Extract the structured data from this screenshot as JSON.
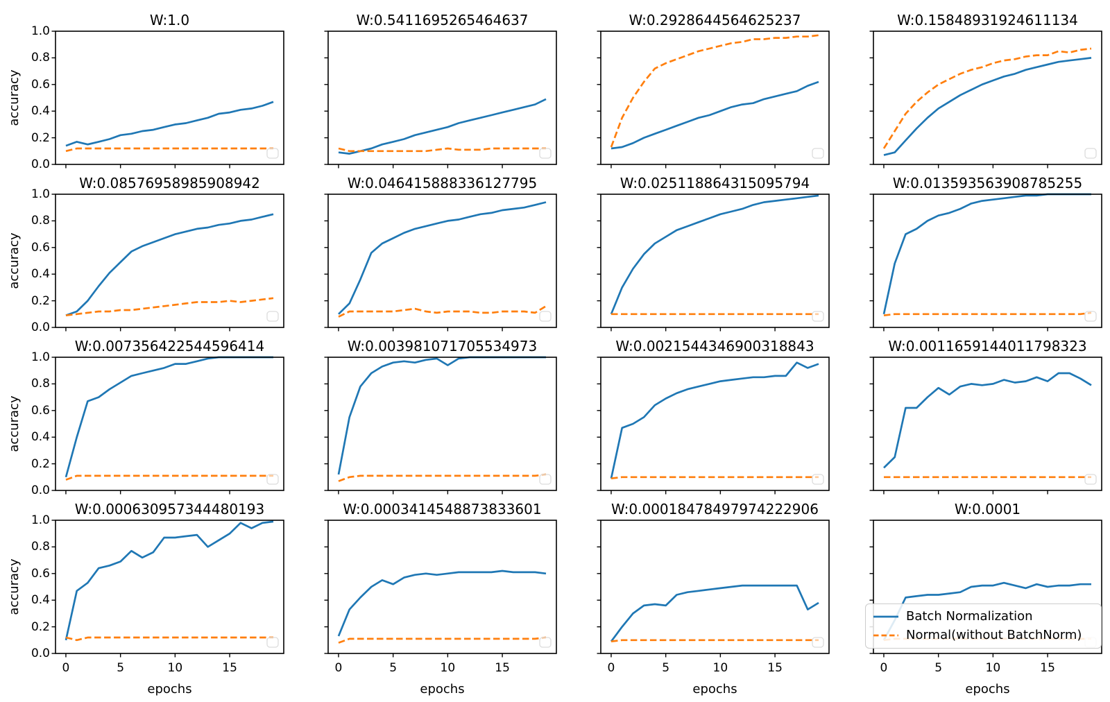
{
  "figure": {
    "background": "#ffffff",
    "xlabel": "epochs",
    "ylabel": "accuracy",
    "xticks": [
      0,
      5,
      10,
      15
    ],
    "yticks": [
      "0.0",
      "0.2",
      "0.4",
      "0.6",
      "0.8",
      "1.0"
    ],
    "x_values": [
      0,
      1,
      2,
      3,
      4,
      5,
      6,
      7,
      8,
      9,
      10,
      11,
      12,
      13,
      14,
      15,
      16,
      17,
      18,
      19
    ],
    "ylim": [
      0.0,
      1.0
    ],
    "xlim": [
      -0.95,
      19.95
    ],
    "grid": false,
    "colors": {
      "batchnorm": "#1f77b4",
      "normal": "#ff7f0e",
      "spine": "#000000",
      "legend_border": "#cccccc"
    },
    "legend": {
      "position": "bottom-right of last subplot",
      "entries": [
        {
          "label": "Batch Normalization",
          "style": "solid",
          "color": "#1f77b4"
        },
        {
          "label": "Normal(without BatchNorm)",
          "style": "dashed",
          "color": "#ff7f0e"
        }
      ]
    }
  },
  "chart_data": [
    {
      "type": "line",
      "title": "W:1.0",
      "series": [
        {
          "name": "Batch Normalization",
          "values": [
            0.14,
            0.17,
            0.15,
            0.17,
            0.19,
            0.22,
            0.23,
            0.25,
            0.26,
            0.28,
            0.3,
            0.31,
            0.33,
            0.35,
            0.38,
            0.39,
            0.41,
            0.42,
            0.44,
            0.47
          ]
        },
        {
          "name": "Normal(without BatchNorm)",
          "values": [
            0.1,
            0.12,
            0.12,
            0.12,
            0.12,
            0.12,
            0.12,
            0.12,
            0.12,
            0.12,
            0.12,
            0.12,
            0.12,
            0.12,
            0.12,
            0.12,
            0.12,
            0.12,
            0.12,
            0.12
          ]
        }
      ]
    },
    {
      "type": "line",
      "title": "W:0.5411695265464637",
      "series": [
        {
          "name": "Batch Normalization",
          "values": [
            0.09,
            0.08,
            0.1,
            0.12,
            0.15,
            0.17,
            0.19,
            0.22,
            0.24,
            0.26,
            0.28,
            0.31,
            0.33,
            0.35,
            0.37,
            0.39,
            0.41,
            0.43,
            0.45,
            0.49
          ]
        },
        {
          "name": "Normal(without BatchNorm)",
          "values": [
            0.12,
            0.1,
            0.1,
            0.1,
            0.1,
            0.1,
            0.1,
            0.1,
            0.1,
            0.11,
            0.12,
            0.11,
            0.11,
            0.11,
            0.12,
            0.12,
            0.12,
            0.12,
            0.12,
            0.12
          ]
        }
      ]
    },
    {
      "type": "line",
      "title": "W:0.2928644564625237",
      "series": [
        {
          "name": "Batch Normalization",
          "values": [
            0.12,
            0.13,
            0.16,
            0.2,
            0.23,
            0.26,
            0.29,
            0.32,
            0.35,
            0.37,
            0.4,
            0.43,
            0.45,
            0.46,
            0.49,
            0.51,
            0.53,
            0.55,
            0.59,
            0.62
          ]
        },
        {
          "name": "Normal(without BatchNorm)",
          "values": [
            0.13,
            0.35,
            0.5,
            0.62,
            0.72,
            0.76,
            0.79,
            0.82,
            0.85,
            0.87,
            0.89,
            0.91,
            0.92,
            0.94,
            0.94,
            0.95,
            0.95,
            0.96,
            0.96,
            0.97
          ]
        }
      ]
    },
    {
      "type": "line",
      "title": "W:0.15848931924611134",
      "series": [
        {
          "name": "Batch Normalization",
          "values": [
            0.07,
            0.09,
            0.18,
            0.27,
            0.35,
            0.42,
            0.47,
            0.52,
            0.56,
            0.6,
            0.63,
            0.66,
            0.68,
            0.71,
            0.73,
            0.75,
            0.77,
            0.78,
            0.79,
            0.8
          ]
        },
        {
          "name": "Normal(without BatchNorm)",
          "values": [
            0.12,
            0.25,
            0.38,
            0.47,
            0.54,
            0.6,
            0.64,
            0.68,
            0.71,
            0.73,
            0.76,
            0.78,
            0.79,
            0.81,
            0.82,
            0.82,
            0.85,
            0.84,
            0.86,
            0.87
          ]
        }
      ]
    },
    {
      "type": "line",
      "title": "W:0.08576958985908942",
      "series": [
        {
          "name": "Batch Normalization",
          "values": [
            0.09,
            0.12,
            0.2,
            0.31,
            0.41,
            0.49,
            0.57,
            0.61,
            0.64,
            0.67,
            0.7,
            0.72,
            0.74,
            0.75,
            0.77,
            0.78,
            0.8,
            0.81,
            0.83,
            0.85
          ]
        },
        {
          "name": "Normal(without BatchNorm)",
          "values": [
            0.09,
            0.1,
            0.11,
            0.12,
            0.12,
            0.13,
            0.13,
            0.14,
            0.15,
            0.16,
            0.17,
            0.18,
            0.19,
            0.19,
            0.19,
            0.2,
            0.19,
            0.2,
            0.21,
            0.22
          ]
        }
      ]
    },
    {
      "type": "line",
      "title": "W:0.046415888336127795",
      "series": [
        {
          "name": "Batch Normalization",
          "values": [
            0.1,
            0.18,
            0.36,
            0.56,
            0.63,
            0.67,
            0.71,
            0.74,
            0.76,
            0.78,
            0.8,
            0.81,
            0.83,
            0.85,
            0.86,
            0.88,
            0.89,
            0.9,
            0.92,
            0.94
          ]
        },
        {
          "name": "Normal(without BatchNorm)",
          "values": [
            0.08,
            0.12,
            0.12,
            0.12,
            0.12,
            0.12,
            0.13,
            0.14,
            0.12,
            0.11,
            0.12,
            0.12,
            0.12,
            0.11,
            0.11,
            0.12,
            0.12,
            0.12,
            0.11,
            0.16
          ]
        }
      ]
    },
    {
      "type": "line",
      "title": "W:0.025118864315095794",
      "series": [
        {
          "name": "Batch Normalization",
          "values": [
            0.1,
            0.3,
            0.44,
            0.55,
            0.63,
            0.68,
            0.73,
            0.76,
            0.79,
            0.82,
            0.85,
            0.87,
            0.89,
            0.92,
            0.94,
            0.95,
            0.96,
            0.97,
            0.98,
            0.99
          ]
        },
        {
          "name": "Normal(without BatchNorm)",
          "values": [
            0.1,
            0.1,
            0.1,
            0.1,
            0.1,
            0.1,
            0.1,
            0.1,
            0.1,
            0.1,
            0.1,
            0.1,
            0.1,
            0.1,
            0.1,
            0.1,
            0.1,
            0.1,
            0.1,
            0.1
          ]
        }
      ]
    },
    {
      "type": "line",
      "title": "W:0.013593563908785255",
      "series": [
        {
          "name": "Batch Normalization",
          "values": [
            0.1,
            0.48,
            0.7,
            0.74,
            0.8,
            0.84,
            0.86,
            0.89,
            0.93,
            0.95,
            0.96,
            0.97,
            0.98,
            0.99,
            0.99,
            1.0,
            1.0,
            1.0,
            1.0,
            1.0
          ]
        },
        {
          "name": "Normal(without BatchNorm)",
          "values": [
            0.09,
            0.1,
            0.1,
            0.1,
            0.1,
            0.1,
            0.1,
            0.1,
            0.1,
            0.1,
            0.1,
            0.1,
            0.1,
            0.1,
            0.1,
            0.1,
            0.1,
            0.1,
            0.1,
            0.11
          ]
        }
      ]
    },
    {
      "type": "line",
      "title": "W:0.007356422544596414",
      "series": [
        {
          "name": "Batch Normalization",
          "values": [
            0.1,
            0.4,
            0.67,
            0.7,
            0.76,
            0.81,
            0.86,
            0.88,
            0.9,
            0.92,
            0.95,
            0.95,
            0.97,
            0.99,
            1.0,
            1.0,
            1.0,
            1.0,
            1.0,
            1.0
          ]
        },
        {
          "name": "Normal(without BatchNorm)",
          "values": [
            0.08,
            0.11,
            0.11,
            0.11,
            0.11,
            0.11,
            0.11,
            0.11,
            0.11,
            0.11,
            0.11,
            0.11,
            0.11,
            0.11,
            0.11,
            0.11,
            0.11,
            0.11,
            0.11,
            0.11
          ]
        }
      ]
    },
    {
      "type": "line",
      "title": "W:0.003981071705534973",
      "series": [
        {
          "name": "Batch Normalization",
          "values": [
            0.12,
            0.55,
            0.78,
            0.88,
            0.93,
            0.96,
            0.97,
            0.96,
            0.98,
            0.99,
            0.94,
            0.99,
            1.0,
            1.0,
            1.0,
            1.0,
            1.0,
            1.0,
            1.0,
            1.0
          ]
        },
        {
          "name": "Normal(without BatchNorm)",
          "values": [
            0.07,
            0.1,
            0.11,
            0.11,
            0.11,
            0.11,
            0.11,
            0.11,
            0.11,
            0.11,
            0.11,
            0.11,
            0.11,
            0.11,
            0.11,
            0.11,
            0.11,
            0.11,
            0.11,
            0.12
          ]
        }
      ]
    },
    {
      "type": "line",
      "title": "W:0.0021544346900318843",
      "series": [
        {
          "name": "Batch Normalization",
          "values": [
            0.09,
            0.47,
            0.5,
            0.55,
            0.64,
            0.69,
            0.73,
            0.76,
            0.78,
            0.8,
            0.82,
            0.83,
            0.84,
            0.85,
            0.85,
            0.86,
            0.86,
            0.96,
            0.92,
            0.95
          ]
        },
        {
          "name": "Normal(without BatchNorm)",
          "values": [
            0.09,
            0.1,
            0.1,
            0.1,
            0.1,
            0.1,
            0.1,
            0.1,
            0.1,
            0.1,
            0.1,
            0.1,
            0.1,
            0.1,
            0.1,
            0.1,
            0.1,
            0.1,
            0.1,
            0.1
          ]
        }
      ]
    },
    {
      "type": "line",
      "title": "W:0.0011659144011798323",
      "series": [
        {
          "name": "Batch Normalization",
          "values": [
            0.17,
            0.25,
            0.62,
            0.62,
            0.7,
            0.77,
            0.72,
            0.78,
            0.8,
            0.79,
            0.8,
            0.83,
            0.81,
            0.82,
            0.85,
            0.82,
            0.88,
            0.88,
            0.84,
            0.79
          ]
        },
        {
          "name": "Normal(without BatchNorm)",
          "values": [
            0.1,
            0.1,
            0.1,
            0.1,
            0.1,
            0.1,
            0.1,
            0.1,
            0.1,
            0.1,
            0.1,
            0.1,
            0.1,
            0.1,
            0.1,
            0.1,
            0.1,
            0.1,
            0.1,
            0.1
          ]
        }
      ]
    },
    {
      "type": "line",
      "title": "W:0.000630957344480193",
      "series": [
        {
          "name": "Batch Normalization",
          "values": [
            0.1,
            0.47,
            0.53,
            0.64,
            0.66,
            0.69,
            0.77,
            0.72,
            0.76,
            0.87,
            0.87,
            0.88,
            0.89,
            0.8,
            0.85,
            0.9,
            0.98,
            0.94,
            0.98,
            0.99
          ]
        },
        {
          "name": "Normal(without BatchNorm)",
          "values": [
            0.12,
            0.1,
            0.12,
            0.12,
            0.12,
            0.12,
            0.12,
            0.12,
            0.12,
            0.12,
            0.12,
            0.12,
            0.12,
            0.12,
            0.12,
            0.12,
            0.12,
            0.12,
            0.12,
            0.12
          ]
        }
      ]
    },
    {
      "type": "line",
      "title": "W:0.0003414548873833601",
      "series": [
        {
          "name": "Batch Normalization",
          "values": [
            0.13,
            0.33,
            0.42,
            0.5,
            0.55,
            0.52,
            0.57,
            0.59,
            0.6,
            0.59,
            0.6,
            0.61,
            0.61,
            0.61,
            0.61,
            0.62,
            0.61,
            0.61,
            0.61,
            0.6
          ]
        },
        {
          "name": "Normal(without BatchNorm)",
          "values": [
            0.08,
            0.11,
            0.11,
            0.11,
            0.11,
            0.11,
            0.11,
            0.11,
            0.11,
            0.11,
            0.11,
            0.11,
            0.11,
            0.11,
            0.11,
            0.11,
            0.11,
            0.11,
            0.11,
            0.12
          ]
        }
      ]
    },
    {
      "type": "line",
      "title": "W:0.00018478497974222906",
      "series": [
        {
          "name": "Batch Normalization",
          "values": [
            0.09,
            0.2,
            0.3,
            0.36,
            0.37,
            0.36,
            0.44,
            0.46,
            0.47,
            0.48,
            0.49,
            0.5,
            0.51,
            0.51,
            0.51,
            0.51,
            0.51,
            0.51,
            0.33,
            0.38
          ]
        },
        {
          "name": "Normal(without BatchNorm)",
          "values": [
            0.09,
            0.1,
            0.1,
            0.1,
            0.1,
            0.1,
            0.1,
            0.1,
            0.1,
            0.1,
            0.1,
            0.1,
            0.1,
            0.1,
            0.1,
            0.1,
            0.1,
            0.1,
            0.1,
            0.1
          ]
        }
      ]
    },
    {
      "type": "line",
      "title": "W:0.0001",
      "series": [
        {
          "name": "Batch Normalization",
          "values": [
            0.1,
            0.25,
            0.42,
            0.43,
            0.44,
            0.44,
            0.45,
            0.46,
            0.5,
            0.51,
            0.51,
            0.53,
            0.51,
            0.49,
            0.52,
            0.5,
            0.51,
            0.51,
            0.52,
            0.52
          ]
        },
        {
          "name": "Normal(without BatchNorm)",
          "values": [
            0.1,
            0.11,
            0.11,
            0.11,
            0.11,
            0.11,
            0.11,
            0.11,
            0.11,
            0.11,
            0.11,
            0.11,
            0.11,
            0.11,
            0.11,
            0.11,
            0.11,
            0.11,
            0.11,
            0.11
          ]
        }
      ]
    }
  ]
}
